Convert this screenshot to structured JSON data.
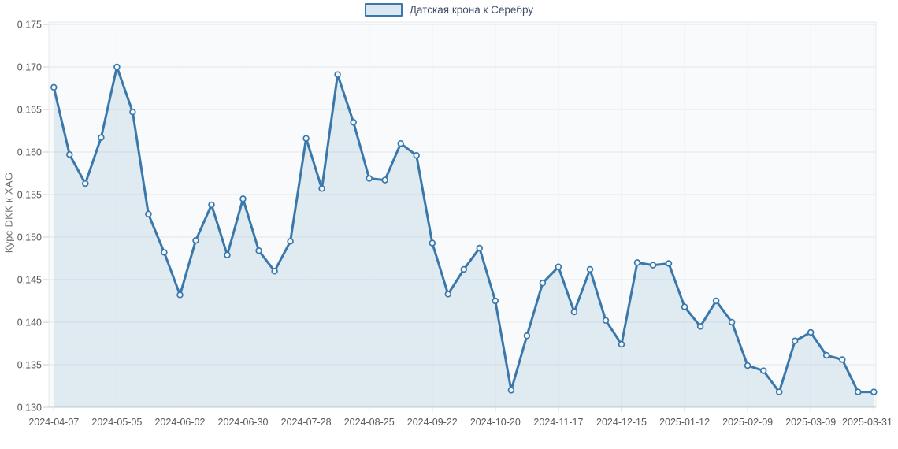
{
  "page": {
    "background": "#ffffff"
  },
  "legend": {
    "label": "Датская крона к Серебру"
  },
  "y_axis_title": "Курс DKK к XAG",
  "colors": {
    "line": "#3a78ab",
    "area_fill": "rgba(58,120,171,0.12)",
    "marker_fill": "#f3f7fa",
    "plot_bg": "#f8fafb",
    "plot_border": "#e6e9ec",
    "grid": "#e4e7ea",
    "grid_vertical": "#eaecee",
    "axis_line": "#c7ccd1",
    "tick": "#c9ced3",
    "tick_text": "#57595c",
    "legend_text": "#40506a",
    "legend_swatch_fill": "#dce8f1"
  },
  "chart_data": {
    "type": "area",
    "title": "",
    "xlabel": "",
    "ylabel": "Курс DKK к XAG",
    "legend_position": "top-center",
    "grid": true,
    "ylim": [
      0.13,
      0.175
    ],
    "y_ticks": [
      0.13,
      0.135,
      0.14,
      0.145,
      0.15,
      0.155,
      0.16,
      0.165,
      0.17,
      0.175
    ],
    "y_tick_labels": [
      "0,130",
      "0,135",
      "0,140",
      "0,145",
      "0,150",
      "0,155",
      "0,160",
      "0,165",
      "0,170",
      "0,175"
    ],
    "x": [
      "2024-04-07",
      "2024-04-14",
      "2024-04-21",
      "2024-04-28",
      "2024-05-05",
      "2024-05-12",
      "2024-05-19",
      "2024-05-26",
      "2024-06-02",
      "2024-06-09",
      "2024-06-16",
      "2024-06-23",
      "2024-06-30",
      "2024-07-07",
      "2024-07-14",
      "2024-07-21",
      "2024-07-28",
      "2024-08-04",
      "2024-08-11",
      "2024-08-18",
      "2024-08-25",
      "2024-09-01",
      "2024-09-08",
      "2024-09-15",
      "2024-09-22",
      "2024-09-29",
      "2024-10-06",
      "2024-10-13",
      "2024-10-20",
      "2024-10-27",
      "2024-11-03",
      "2024-11-10",
      "2024-11-17",
      "2024-11-24",
      "2024-12-01",
      "2024-12-08",
      "2024-12-15",
      "2024-12-22",
      "2024-12-29",
      "2025-01-05",
      "2025-01-12",
      "2025-01-19",
      "2025-01-26",
      "2025-02-02",
      "2025-02-09",
      "2025-02-16",
      "2025-02-23",
      "2025-03-02",
      "2025-03-09",
      "2025-03-16",
      "2025-03-23",
      "2025-03-30",
      "2025-03-31"
    ],
    "x_tick_indices": [
      0,
      4,
      8,
      12,
      16,
      20,
      24,
      28,
      32,
      36,
      40,
      44,
      48,
      52
    ],
    "series": [
      {
        "name": "Датская крона к Серебру",
        "values": [
          0.1676,
          0.1597,
          0.1563,
          0.1617,
          0.17,
          0.1647,
          0.1527,
          0.1482,
          0.1432,
          0.1496,
          0.1538,
          0.1479,
          0.1545,
          0.1484,
          0.146,
          0.1495,
          0.1616,
          0.1557,
          0.1691,
          0.1635,
          0.1569,
          0.1567,
          0.161,
          0.1596,
          0.1493,
          0.1433,
          0.1462,
          0.1487,
          0.1425,
          0.132,
          0.1384,
          0.1446,
          0.1465,
          0.1412,
          0.1462,
          0.1402,
          0.1374,
          0.147,
          0.1467,
          0.1469,
          0.1418,
          0.1395,
          0.1425,
          0.14,
          0.1349,
          0.1343,
          0.1318,
          0.1378,
          0.1388,
          0.1361,
          0.1356,
          0.1318,
          0.1318
        ]
      }
    ]
  }
}
